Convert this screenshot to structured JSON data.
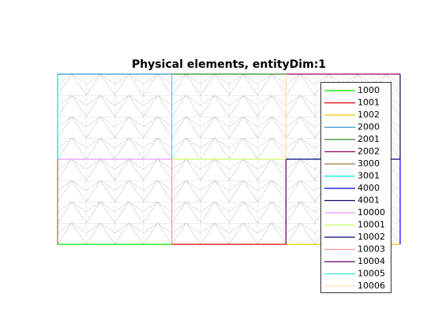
{
  "chart_data": {
    "type": "line",
    "title": "Physical elements, entityDim:1",
    "xlim": [
      0,
      3
    ],
    "ylim": [
      0,
      2
    ],
    "series": [
      {
        "name": "1000",
        "color": "#00e600",
        "x": [
          0,
          1
        ],
        "values": [
          0,
          0
        ]
      },
      {
        "name": "1001",
        "color": "#e60000",
        "x": [
          1,
          2
        ],
        "values": [
          0,
          0
        ]
      },
      {
        "name": "1002",
        "color": "#f0c800",
        "x": [
          2,
          3
        ],
        "values": [
          0,
          0
        ]
      },
      {
        "name": "2000",
        "color": "#3399cc",
        "x": [
          0,
          1
        ],
        "values": [
          2,
          2
        ]
      },
      {
        "name": "2001",
        "color": "#2e8b2e",
        "x": [
          1,
          2
        ],
        "values": [
          2,
          2
        ]
      },
      {
        "name": "2002",
        "color": "#990066",
        "x": [
          2,
          3
        ],
        "values": [
          2,
          2
        ]
      },
      {
        "name": "3000",
        "color": "#a0703a",
        "x": [
          0,
          0
        ],
        "values": [
          0,
          1
        ]
      },
      {
        "name": "3001",
        "color": "#00e6e6",
        "x": [
          0,
          0
        ],
        "values": [
          1,
          2
        ]
      },
      {
        "name": "4000",
        "color": "#0000ff",
        "x": [
          3,
          3
        ],
        "values": [
          0,
          1
        ]
      },
      {
        "name": "4001",
        "color": "#1a0066",
        "x": [
          3,
          3
        ],
        "values": [
          1,
          2
        ]
      },
      {
        "name": "10000",
        "color": "#e599ff",
        "x": [
          0,
          1
        ],
        "values": [
          1,
          1
        ]
      },
      {
        "name": "10001",
        "color": "#ccff66",
        "x": [
          1,
          2
        ],
        "values": [
          1,
          1
        ]
      },
      {
        "name": "10002",
        "color": "#000080",
        "x": [
          2,
          3
        ],
        "values": [
          1,
          1
        ]
      },
      {
        "name": "10003",
        "color": "#ff9999",
        "x": [
          1,
          1
        ],
        "values": [
          0,
          1
        ]
      },
      {
        "name": "10004",
        "color": "#660066",
        "x": [
          2,
          2
        ],
        "values": [
          0,
          1
        ]
      },
      {
        "name": "10005",
        "color": "#33e6e6",
        "x": [
          1,
          1
        ],
        "values": [
          1,
          2
        ]
      },
      {
        "name": "10006",
        "color": "#ffe0a0",
        "x": [
          2,
          2
        ],
        "values": [
          1,
          2
        ]
      }
    ]
  }
}
